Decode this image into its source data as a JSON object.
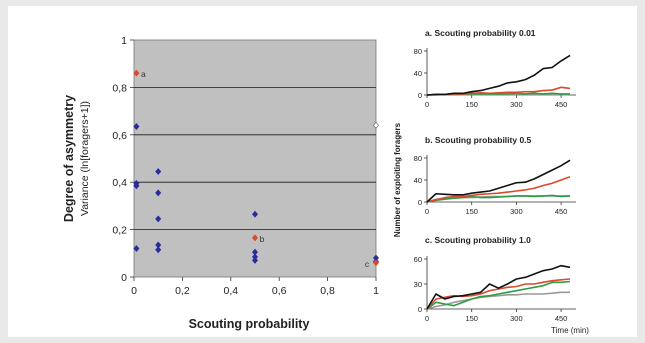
{
  "chart_data": [
    {
      "type": "scatter",
      "xlabel": "Scouting probability",
      "ylabel": "Degree of asymmetry",
      "ylabel_sub": "Variance (ln[foragers+1])",
      "xlim": [
        0,
        1
      ],
      "ylim": [
        0,
        1
      ],
      "x_ticks": [
        "0",
        "0,2",
        "0,4",
        "0,6",
        "0,8",
        "1"
      ],
      "y_ticks": [
        "0",
        "0,2",
        "0,4",
        "0,6",
        "0,8",
        "1"
      ],
      "plot_background": "#c0c0c0",
      "grid": true,
      "series": [
        {
          "color": "#2b2b9c",
          "points": [
            [
              0.01,
              0.635
            ],
            [
              0.01,
              0.395
            ],
            [
              0.01,
              0.385
            ],
            [
              0.01,
              0.12
            ],
            [
              0.1,
              0.445
            ],
            [
              0.1,
              0.355
            ],
            [
              0.1,
              0.245
            ],
            [
              0.1,
              0.135
            ],
            [
              0.1,
              0.115
            ],
            [
              0.5,
              0.265
            ],
            [
              0.5,
              0.105
            ],
            [
              0.5,
              0.085
            ],
            [
              0.5,
              0.07
            ],
            [
              1.0,
              0.08
            ],
            [
              1.0,
              0.065
            ]
          ]
        },
        {
          "color": "#d94b2b",
          "points": [
            [
              0.01,
              0.86
            ],
            [
              0.5,
              0.165
            ],
            [
              1.0,
              0.06
            ]
          ]
        },
        {
          "color": "#ffffff",
          "points": [
            [
              1.0,
              0.64
            ]
          ]
        }
      ],
      "annotations": [
        {
          "text": "a",
          "x": 0.01,
          "y": 0.86
        },
        {
          "text": "b",
          "x": 0.5,
          "y": 0.165
        },
        {
          "text": "c",
          "x": 1.0,
          "y": 0.06
        }
      ]
    },
    {
      "type": "line",
      "title": "a. Scouting probability 0.01",
      "ylim": [
        0,
        80
      ],
      "xlim": [
        0,
        500
      ],
      "y_ticks": [
        0,
        40,
        80
      ],
      "x_ticks": [
        0,
        150,
        300,
        450
      ],
      "series": [
        {
          "color": "#111111",
          "x": [
            0,
            30,
            60,
            90,
            120,
            150,
            180,
            210,
            240,
            270,
            300,
            330,
            360,
            390,
            420,
            450,
            480
          ],
          "y": [
            0,
            1,
            1,
            3,
            3,
            6,
            8,
            12,
            16,
            22,
            24,
            28,
            36,
            48,
            50,
            62,
            72
          ]
        },
        {
          "color": "#d94b2b",
          "x": [
            0,
            30,
            60,
            90,
            120,
            150,
            180,
            210,
            240,
            270,
            300,
            330,
            360,
            390,
            420,
            450,
            480
          ],
          "y": [
            0,
            1,
            1,
            2,
            2,
            3,
            4,
            3,
            4,
            5,
            5,
            6,
            6,
            8,
            9,
            14,
            12
          ]
        },
        {
          "color": "#2e9c45",
          "x": [
            0,
            30,
            60,
            90,
            120,
            150,
            180,
            210,
            240,
            270,
            300,
            330,
            360,
            390,
            420,
            450,
            480
          ],
          "y": [
            0,
            1,
            1,
            1,
            2,
            2,
            2,
            2,
            2,
            2,
            3,
            2,
            3,
            2,
            3,
            2,
            2
          ]
        },
        {
          "color": "#999999",
          "x": [
            0,
            30,
            60,
            90,
            120,
            150,
            180,
            210,
            240,
            270,
            300,
            330,
            360,
            390,
            420,
            450,
            480
          ],
          "y": [
            0,
            0,
            1,
            1,
            1,
            1,
            1,
            1,
            1,
            1,
            1,
            1,
            1,
            1,
            1,
            1,
            1
          ]
        }
      ]
    },
    {
      "type": "line",
      "title": "b. Scouting probability 0.5",
      "ylabel": "Number of exploiting foragers",
      "ylim": [
        0,
        80
      ],
      "xlim": [
        0,
        500
      ],
      "y_ticks": [
        0,
        40,
        80
      ],
      "x_ticks": [
        0,
        150,
        300,
        450
      ],
      "series": [
        {
          "color": "#111111",
          "x": [
            0,
            30,
            60,
            90,
            120,
            150,
            180,
            210,
            240,
            270,
            300,
            330,
            360,
            390,
            420,
            450,
            480
          ],
          "y": [
            0,
            15,
            14,
            13,
            13,
            16,
            18,
            20,
            25,
            30,
            35,
            36,
            42,
            50,
            58,
            66,
            76
          ]
        },
        {
          "color": "#d94b2b",
          "x": [
            0,
            30,
            60,
            90,
            120,
            150,
            180,
            210,
            240,
            270,
            300,
            330,
            360,
            390,
            420,
            450,
            480
          ],
          "y": [
            0,
            4,
            8,
            10,
            10,
            12,
            14,
            15,
            16,
            18,
            20,
            22,
            25,
            30,
            34,
            40,
            46
          ]
        },
        {
          "color": "#2e9c45",
          "x": [
            0,
            30,
            60,
            90,
            120,
            150,
            180,
            210,
            240,
            270,
            300,
            330,
            360,
            390,
            420,
            450,
            480
          ],
          "y": [
            0,
            3,
            5,
            7,
            8,
            10,
            8,
            8,
            9,
            10,
            11,
            11,
            10,
            11,
            12,
            10,
            11
          ]
        },
        {
          "color": "#999999",
          "x": [
            0,
            30,
            60,
            90,
            120,
            150,
            180,
            210,
            240,
            270,
            300,
            330,
            360,
            390,
            420,
            450,
            480
          ],
          "y": [
            0,
            5,
            6,
            7,
            8,
            8,
            9,
            10,
            10,
            10,
            11,
            11,
            11,
            11,
            11,
            11,
            11
          ]
        }
      ]
    },
    {
      "type": "line",
      "title": "c. Scouting probability 1.0",
      "xlabel": "Time (min)",
      "ylim": [
        0,
        60
      ],
      "xlim": [
        0,
        500
      ],
      "y_ticks": [
        0,
        30,
        60
      ],
      "x_ticks": [
        0,
        150,
        300,
        450
      ],
      "series": [
        {
          "color": "#111111",
          "x": [
            0,
            30,
            60,
            90,
            120,
            150,
            180,
            210,
            240,
            270,
            300,
            330,
            360,
            390,
            420,
            450,
            480
          ],
          "y": [
            0,
            18,
            12,
            15,
            16,
            18,
            20,
            30,
            25,
            30,
            36,
            38,
            42,
            46,
            48,
            52,
            50
          ]
        },
        {
          "color": "#d94b2b",
          "x": [
            0,
            30,
            60,
            90,
            120,
            150,
            180,
            210,
            240,
            270,
            300,
            330,
            360,
            390,
            420,
            450,
            480
          ],
          "y": [
            0,
            12,
            14,
            16,
            15,
            16,
            18,
            22,
            24,
            26,
            27,
            30,
            30,
            32,
            34,
            35,
            36
          ]
        },
        {
          "color": "#2e9c45",
          "x": [
            0,
            30,
            60,
            90,
            120,
            150,
            180,
            210,
            240,
            270,
            300,
            330,
            360,
            390,
            420,
            450,
            480
          ],
          "y": [
            0,
            8,
            6,
            4,
            8,
            12,
            15,
            16,
            18,
            20,
            22,
            24,
            26,
            28,
            32,
            32,
            33
          ]
        },
        {
          "color": "#999999",
          "x": [
            0,
            30,
            60,
            90,
            120,
            150,
            180,
            210,
            240,
            270,
            300,
            330,
            360,
            390,
            420,
            450,
            480
          ],
          "y": [
            0,
            3,
            5,
            8,
            10,
            12,
            14,
            15,
            16,
            17,
            17,
            18,
            18,
            18,
            19,
            20,
            20
          ]
        }
      ]
    }
  ]
}
